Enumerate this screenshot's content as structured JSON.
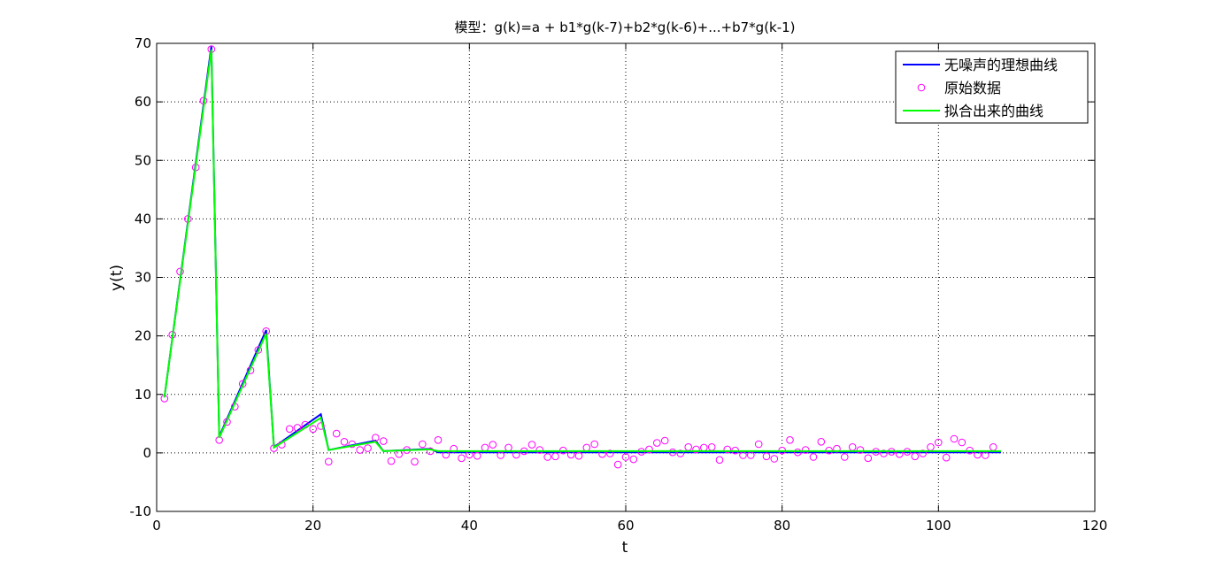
{
  "chart_data": {
    "type": "line",
    "title": "模型：g(k)=a + b1*g(k-7)+b2*g(k-6)+...+b7*g(k-1)",
    "xlabel": "t",
    "ylabel": "y(t)",
    "xlim": [
      0,
      120
    ],
    "ylim": [
      -10,
      70
    ],
    "xticks": [
      0,
      20,
      40,
      60,
      80,
      100,
      120
    ],
    "yticks": [
      -10,
      0,
      10,
      20,
      30,
      40,
      50,
      60,
      70
    ],
    "grid": true,
    "legend_position": "top-right",
    "series": [
      {
        "name": "无噪声的理想曲线",
        "style": "line",
        "color": "#0000ff",
        "x": [
          1,
          7,
          8,
          14,
          15,
          21,
          22,
          28,
          29,
          35,
          36,
          108
        ],
        "y": [
          9.5,
          69.5,
          2.8,
          21.0,
          1.0,
          6.6,
          0.5,
          2.1,
          0.3,
          0.7,
          0.1,
          0.1
        ]
      },
      {
        "name": "原始数据",
        "style": "marker",
        "color": "#ff00ff",
        "x": [
          1,
          2,
          3,
          4,
          5,
          6,
          7,
          8,
          9,
          10,
          11,
          12,
          13,
          14,
          15,
          16,
          17,
          18,
          19,
          20,
          21,
          22,
          23,
          24,
          25,
          26,
          27,
          28,
          29,
          30,
          31,
          32,
          33,
          34,
          35,
          36,
          37,
          38,
          39,
          40,
          41,
          42,
          43,
          44,
          45,
          46,
          47,
          48,
          49,
          50,
          51,
          52,
          53,
          54,
          55,
          56,
          57,
          58,
          59,
          60,
          61,
          62,
          63,
          64,
          65,
          66,
          67,
          68,
          69,
          70,
          71,
          72,
          73,
          74,
          75,
          76,
          77,
          78,
          79,
          80,
          81,
          82,
          83,
          84,
          85,
          86,
          87,
          88,
          89,
          90,
          91,
          92,
          93,
          94,
          95,
          96,
          97,
          98,
          99,
          100,
          101,
          102,
          103,
          104,
          105,
          106,
          107
        ],
        "y": [
          9.3,
          20.2,
          31.0,
          40.0,
          48.8,
          60.2,
          69.0,
          2.2,
          5.3,
          7.9,
          11.8,
          14.1,
          17.6,
          20.8,
          0.8,
          1.4,
          4.1,
          4.3,
          4.8,
          4.1,
          4.6,
          -1.5,
          3.3,
          1.9,
          1.5,
          0.5,
          0.8,
          2.6,
          2.0,
          -1.4,
          -0.2,
          0.5,
          -1.5,
          1.5,
          0.3,
          2.2,
          -0.3,
          0.7,
          -0.9,
          -0.3,
          -0.5,
          0.9,
          1.4,
          -0.4,
          0.9,
          -0.3,
          0.3,
          1.4,
          0.5,
          -0.7,
          -0.6,
          0.4,
          -0.3,
          -0.5,
          0.9,
          1.5,
          -0.2,
          -0.1,
          -2.0,
          -0.7,
          -1.1,
          0.2,
          0.6,
          1.7,
          2.1,
          0.1,
          -0.1,
          1.0,
          0.6,
          0.9,
          1.0,
          -1.2,
          0.6,
          0.4,
          -0.4,
          -0.4,
          1.5,
          -0.6,
          -1.0,
          0.4,
          2.2,
          0.1,
          0.5,
          -0.7,
          1.9,
          0.4,
          0.7,
          -0.7,
          1.0,
          0.5,
          -0.9,
          0.2,
          -0.1,
          0.2,
          -0.2,
          0.2,
          -0.6,
          -0.1,
          1.0,
          1.8,
          -0.8,
          2.4,
          1.8,
          0.4,
          -0.3,
          -0.4,
          1.0
        ]
      },
      {
        "name": "拟合出来的曲线",
        "style": "line",
        "color": "#00ff00",
        "x": [
          1,
          7,
          8,
          14,
          15,
          21,
          22,
          28,
          29,
          35,
          36,
          108
        ],
        "y": [
          9.5,
          68.9,
          2.6,
          20.4,
          0.9,
          6.0,
          0.5,
          1.9,
          0.3,
          0.6,
          0.3,
          0.3
        ]
      }
    ]
  }
}
